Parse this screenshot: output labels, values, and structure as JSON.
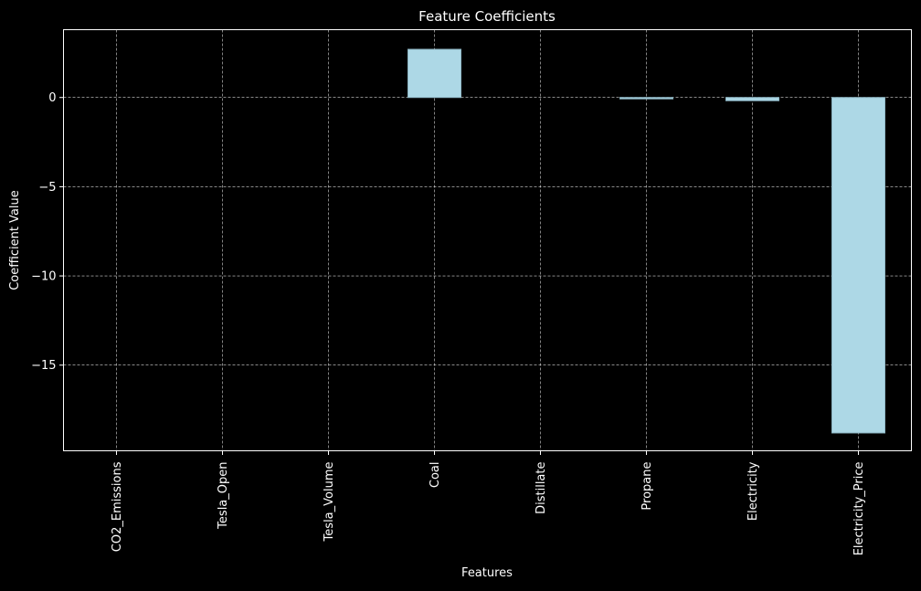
{
  "chart_data": {
    "type": "bar",
    "title": "Feature Coefficients",
    "xlabel": "Features",
    "ylabel": "Coefficient Value",
    "categories": [
      "CO2_Emissions",
      "Tesla_Open",
      "Tesla_Volume",
      "Coal",
      "Distillate",
      "Propane",
      "Electricity",
      "Electricity_Price"
    ],
    "values": [
      0.0,
      0.0,
      0.0,
      2.7,
      0.0,
      -0.05,
      -0.18,
      -18.8
    ],
    "ylim": [
      -19.8,
      3.8
    ],
    "yticks": [
      0,
      -5,
      -10,
      -15
    ],
    "ytick_labels": [
      "0",
      "−5",
      "−10",
      "−15"
    ],
    "grid": true,
    "colors": {
      "background": "#000000",
      "bar_fill": "#add8e6",
      "bar_edge": "#8fb8c6",
      "text": "#ffffff",
      "grid": "#ffffff",
      "axes": "#ffffff"
    }
  }
}
